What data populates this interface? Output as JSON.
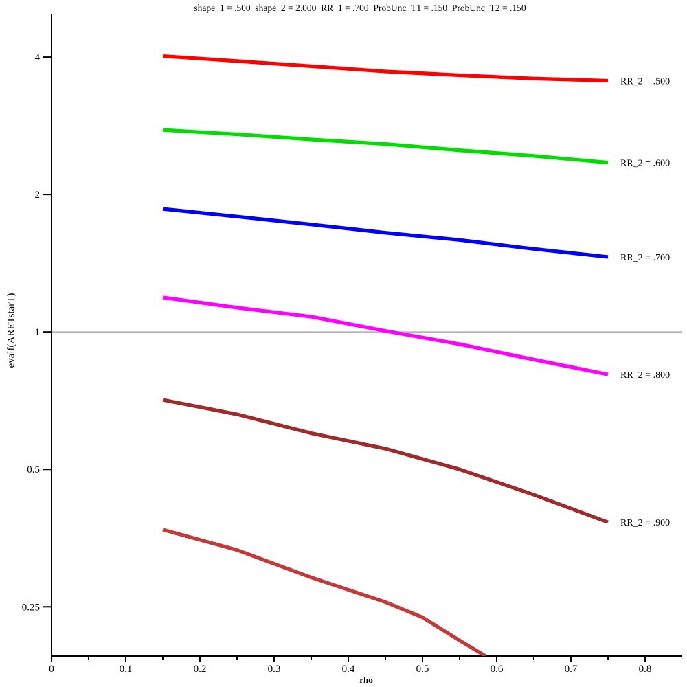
{
  "chart_data": {
    "type": "line",
    "title": "shape_1 = .500  shape_2 = 2.000  RR_1 = .700  ProbUnc_T1 = .150  ProbUnc_T2 = .150",
    "xlabel": "rho",
    "ylabel": "evalf(ARETstarT)",
    "y_scale": "log2",
    "xlim": [
      0,
      0.85
    ],
    "ylim": [
      0.195,
      4.96
    ],
    "grid": false,
    "legend_position": "labels-at-curve-ends-right",
    "x_ticks": [
      {
        "value": 0.0,
        "label": "0"
      },
      {
        "value": 0.1,
        "label": "0.1"
      },
      {
        "value": 0.2,
        "label": "0.2"
      },
      {
        "value": 0.3,
        "label": "0.3"
      },
      {
        "value": 0.4,
        "label": "0.4"
      },
      {
        "value": 0.5,
        "label": "0.5"
      },
      {
        "value": 0.6,
        "label": "0.6"
      },
      {
        "value": 0.7,
        "label": "0.7"
      },
      {
        "value": 0.8,
        "label": "0.8"
      }
    ],
    "x_minor_ticks": [
      0.05,
      0.15,
      0.25,
      0.35,
      0.45,
      0.55,
      0.65,
      0.75
    ],
    "y_ticks": [
      {
        "value": 4,
        "label": "4"
      },
      {
        "value": 2,
        "label": "2"
      },
      {
        "value": 1,
        "label": "1"
      },
      {
        "value": 0.5,
        "label": "0.5"
      },
      {
        "value": 0.25,
        "label": "0.25"
      }
    ],
    "reference_line": {
      "y": 1,
      "color": "#aaaaaa"
    },
    "axis_color": "#000000",
    "series": [
      {
        "label": "RR_2 = .500",
        "color": "#ff0000",
        "points": [
          [
            0.15,
            4.02
          ],
          [
            0.25,
            3.92
          ],
          [
            0.35,
            3.82
          ],
          [
            0.45,
            3.72
          ],
          [
            0.55,
            3.65
          ],
          [
            0.65,
            3.59
          ],
          [
            0.75,
            3.55
          ]
        ]
      },
      {
        "label": "RR_2 = .600",
        "color": "#00dd00",
        "points": [
          [
            0.15,
            2.77
          ],
          [
            0.25,
            2.71
          ],
          [
            0.35,
            2.64
          ],
          [
            0.45,
            2.58
          ],
          [
            0.55,
            2.5
          ],
          [
            0.65,
            2.43
          ],
          [
            0.75,
            2.35
          ]
        ]
      },
      {
        "label": "RR_2 = .700",
        "color": "#0000ff",
        "points": [
          [
            0.15,
            1.86
          ],
          [
            0.25,
            1.79
          ],
          [
            0.35,
            1.72
          ],
          [
            0.45,
            1.65
          ],
          [
            0.55,
            1.59
          ],
          [
            0.65,
            1.52
          ],
          [
            0.75,
            1.46
          ]
        ]
      },
      {
        "label": "RR_2 = .800",
        "color": "#ff00ff",
        "points": [
          [
            0.15,
            1.19
          ],
          [
            0.25,
            1.13
          ],
          [
            0.35,
            1.08
          ],
          [
            0.45,
            1.005
          ],
          [
            0.55,
            0.94
          ],
          [
            0.65,
            0.87
          ],
          [
            0.75,
            0.807
          ]
        ]
      },
      {
        "label": "RR_2 = .900",
        "color": "#9e2b2b",
        "points": [
          [
            0.15,
            0.71
          ],
          [
            0.25,
            0.66
          ],
          [
            0.35,
            0.6
          ],
          [
            0.45,
            0.555
          ],
          [
            0.55,
            0.5
          ],
          [
            0.65,
            0.44
          ],
          [
            0.75,
            0.383
          ]
        ]
      },
      {
        "label": "",
        "color": "#c23b3b",
        "points": [
          [
            0.15,
            0.369
          ],
          [
            0.25,
            0.333
          ],
          [
            0.35,
            0.29
          ],
          [
            0.45,
            0.256
          ],
          [
            0.5,
            0.237
          ],
          [
            0.55,
            0.211
          ],
          [
            0.585,
            0.195
          ]
        ]
      }
    ]
  }
}
